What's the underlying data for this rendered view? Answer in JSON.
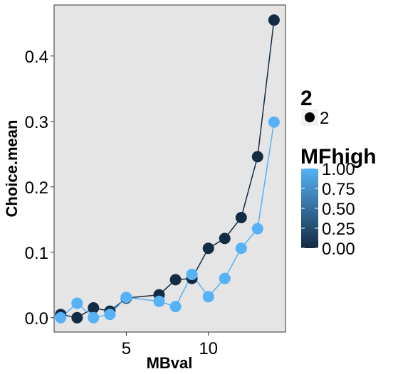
{
  "chart_data": {
    "type": "line",
    "xlabel": "MBval",
    "ylabel": "Choice.mean",
    "xlim": [
      0.6,
      14.7
    ],
    "ylim": [
      -0.022,
      0.478
    ],
    "x_ticks": [
      5,
      10
    ],
    "y_ticks": [
      0.0,
      0.1,
      0.2,
      0.3,
      0.4
    ],
    "y_tick_labels": [
      "0.0",
      "0.1",
      "0.2",
      "0.3",
      "0.4"
    ],
    "grid": false,
    "panel_background": "#e5e5e5",
    "series": [
      {
        "mfhigh": 0,
        "color": "#132b43",
        "x": [
          1,
          2,
          3,
          4,
          5,
          7,
          8,
          9,
          10,
          11,
          12,
          13,
          14
        ],
        "y": [
          0.005,
          0.0,
          0.015,
          0.01,
          0.03,
          0.035,
          0.058,
          0.06,
          0.106,
          0.121,
          0.153,
          0.246,
          0.455
        ]
      },
      {
        "mfhigh": 1,
        "color": "#56b1f7",
        "x": [
          1,
          2,
          3,
          4,
          5,
          7,
          8,
          9,
          10,
          11,
          12,
          13,
          14
        ],
        "y": [
          0.0,
          0.022,
          0.0,
          0.005,
          0.031,
          0.025,
          0.017,
          0.066,
          0.032,
          0.06,
          0.106,
          0.136,
          0.299
        ]
      }
    ],
    "legends": [
      {
        "title": "2",
        "type": "shape",
        "entries": [
          "2"
        ]
      },
      {
        "title": "MFhigh",
        "type": "colorbar",
        "low_color": "#132b43",
        "high_color": "#56b1f7",
        "range": [
          0,
          1
        ],
        "ticks": [
          0.0,
          0.25,
          0.5,
          0.75,
          1.0
        ],
        "tick_labels": [
          "0.00",
          "0.25",
          "0.50",
          "0.75",
          "1.00"
        ]
      }
    ],
    "legend_position": "right"
  }
}
